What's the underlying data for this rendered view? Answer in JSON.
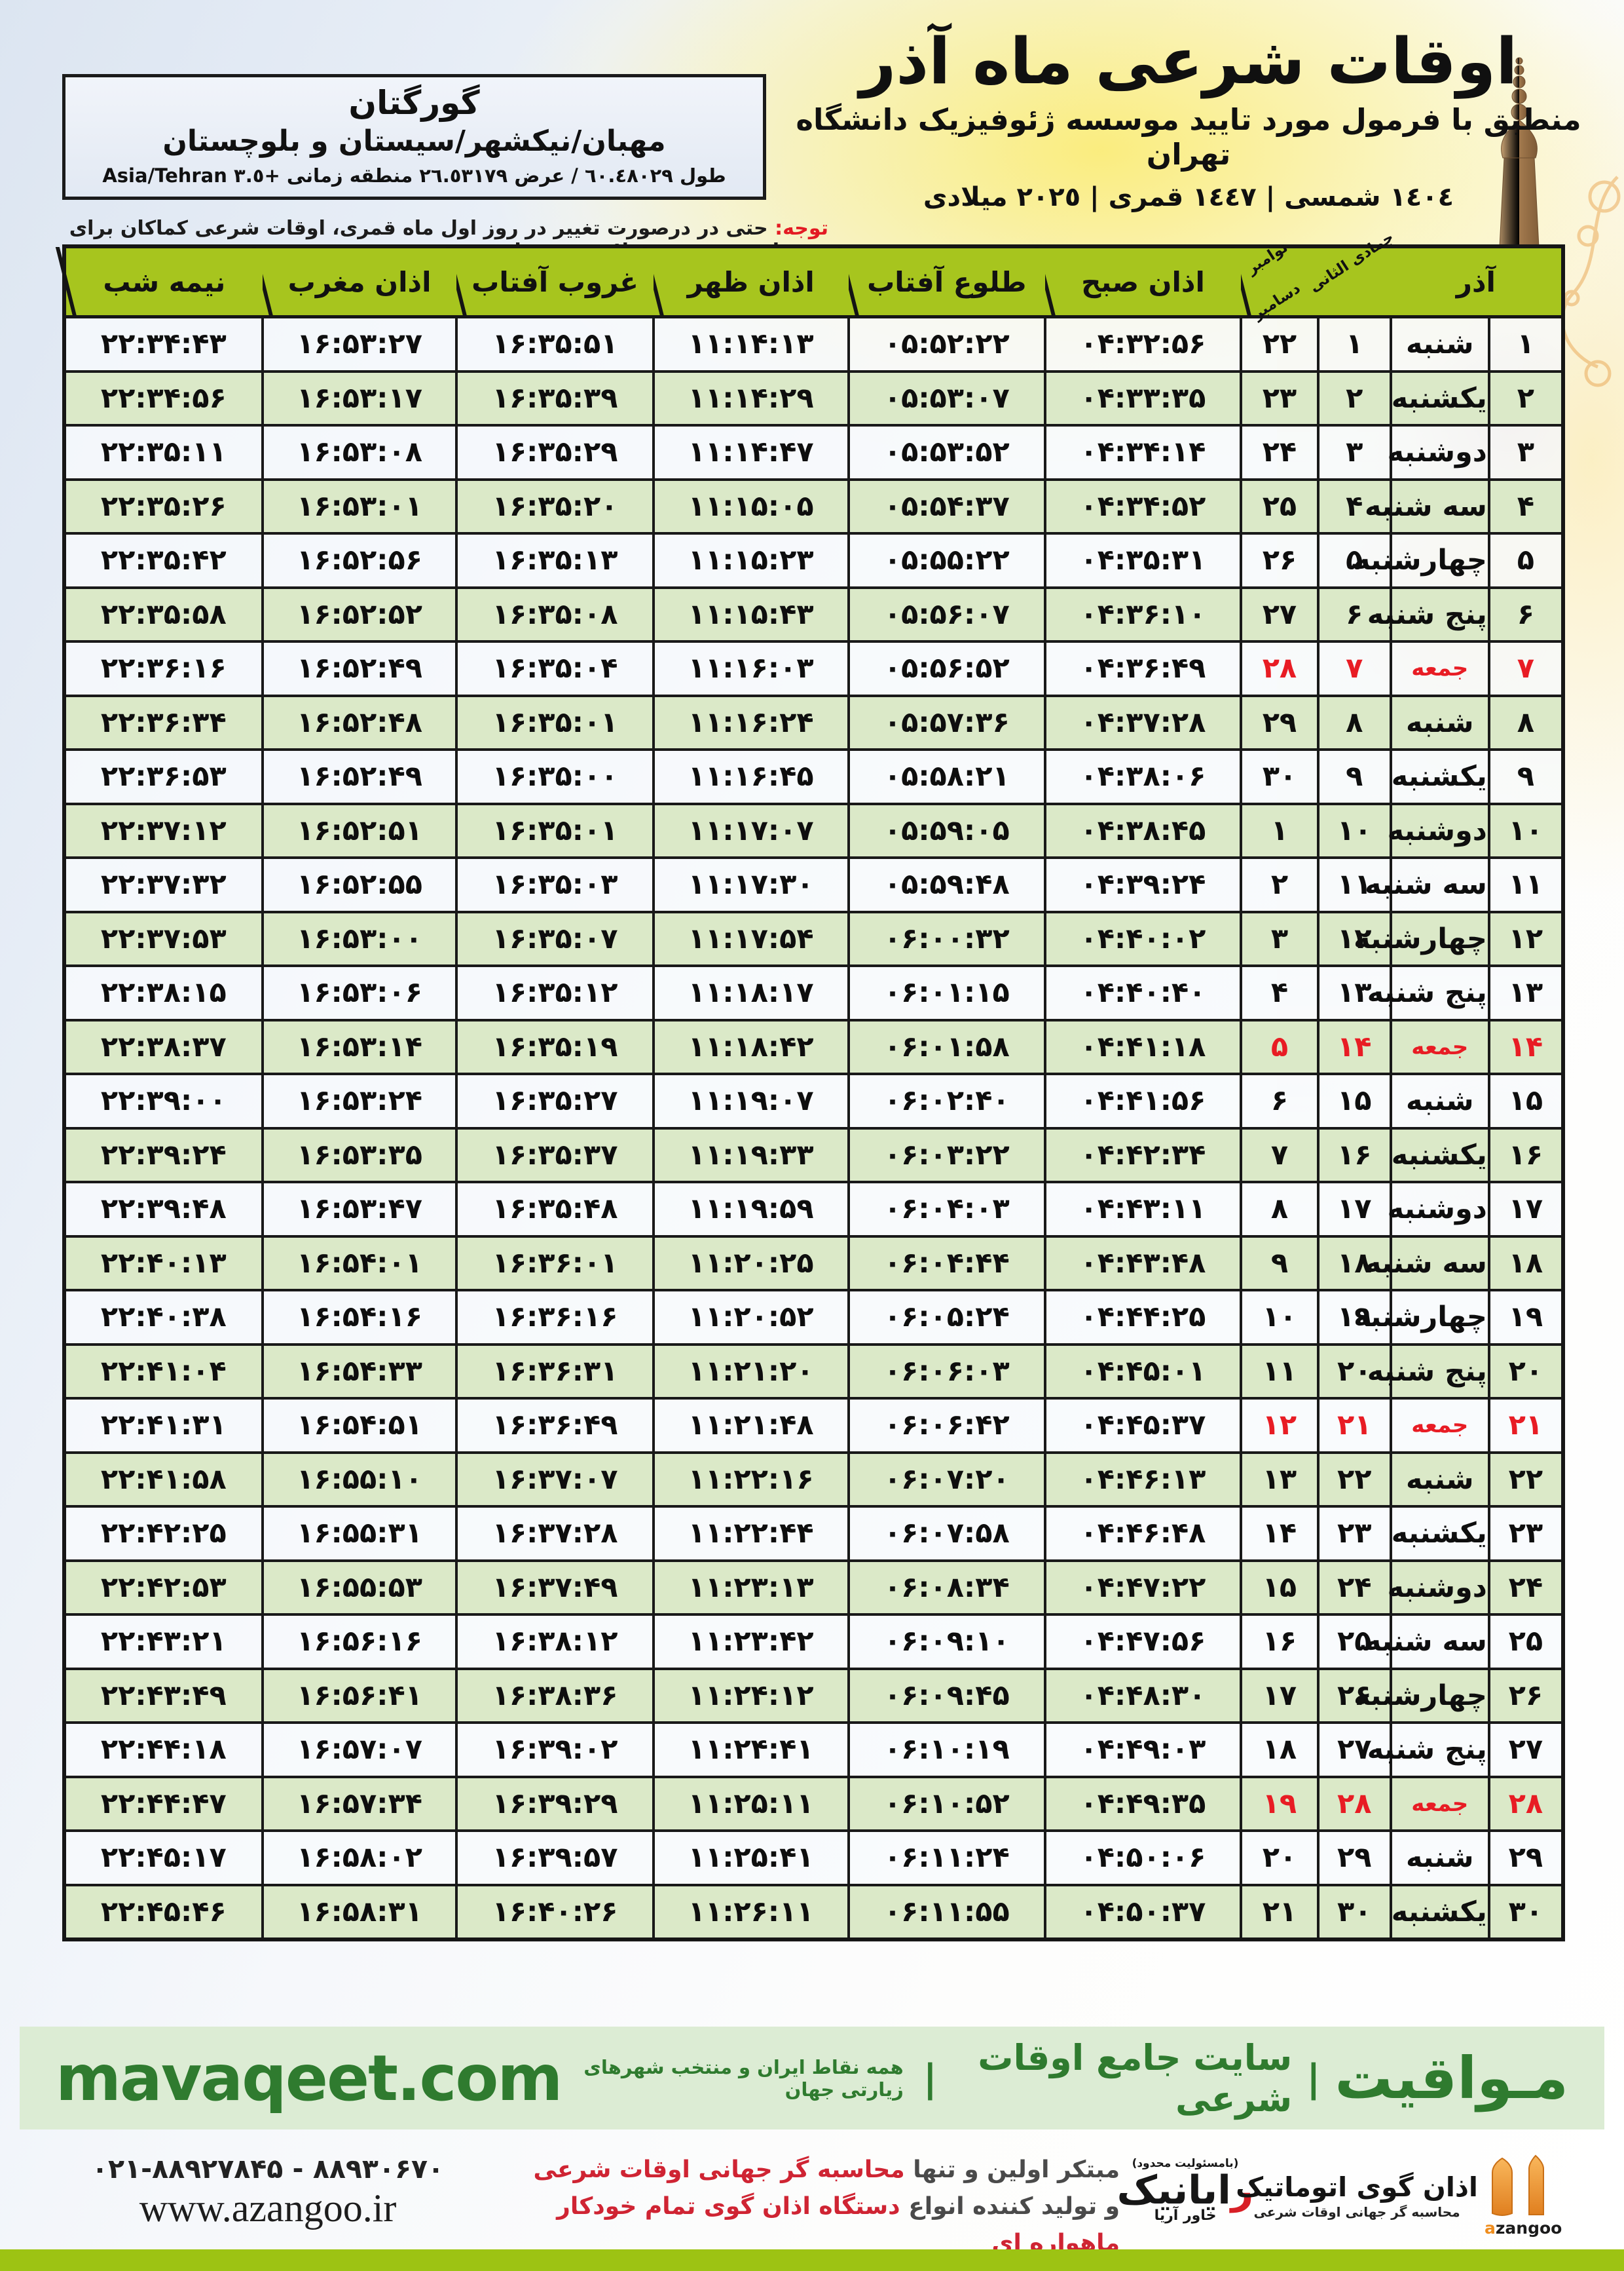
{
  "location": {
    "city": "گورگتان",
    "region": "مهبان/نیکشهر/سیستان و بلوچستان",
    "coords": "طول ٦٠.٤٨٠٢٩ / عرض ٢٦.٥٣١٧٩ منطقه زمانی +٣.٥ Asia/Tehran"
  },
  "title_block": {
    "title": "اوقات شرعی ماه آذر",
    "subtitle": "منطبق با فرمول مورد تایید موسسه ژئوفیزیک دانشگاه تهران",
    "years": "١٤٠٤ شمسی | ١٤٤٧ قمری | ٢٠٢٥ میلادی"
  },
  "notice": {
    "label": "توجه:",
    "text": "حتی در درصورت تغییر در روز اول ماه قمری، اوقات شرعی کماکان برای روزهای شمسی و میلادی معتبر است."
  },
  "table": {
    "headers": {
      "azar": "آذر",
      "hijri_month": "جمادی الثانی",
      "greg_month_1": "نوامبر",
      "greg_month_2": "دسامبر",
      "sobh": "اذان صبح",
      "tolu": "طلوع آفتاب",
      "zohr": "اذان ظهر",
      "ghorub": "غروب آفتاب",
      "maghreb": "اذان مغرب",
      "nime": "نیمه شب"
    },
    "rows": [
      {
        "azar": 1,
        "weekday": "شنبه",
        "hijri": 1,
        "greg": 22,
        "sobh": "04:32:56",
        "tolu": "05:52:22",
        "zohr": "11:14:13",
        "ghorub": "16:35:51",
        "maghreb": "16:53:27",
        "nime": "22:34:43",
        "friday": false
      },
      {
        "azar": 2,
        "weekday": "یکشنبه",
        "hijri": 2,
        "greg": 23,
        "sobh": "04:33:35",
        "tolu": "05:53:07",
        "zohr": "11:14:29",
        "ghorub": "16:35:39",
        "maghreb": "16:53:17",
        "nime": "22:34:56",
        "friday": false
      },
      {
        "azar": 3,
        "weekday": "دوشنبه",
        "hijri": 3,
        "greg": 24,
        "sobh": "04:34:14",
        "tolu": "05:53:52",
        "zohr": "11:14:47",
        "ghorub": "16:35:29",
        "maghreb": "16:53:08",
        "nime": "22:35:11",
        "friday": false
      },
      {
        "azar": 4,
        "weekday": "سه شنبه",
        "hijri": 4,
        "greg": 25,
        "sobh": "04:34:52",
        "tolu": "05:54:37",
        "zohr": "11:15:05",
        "ghorub": "16:35:20",
        "maghreb": "16:53:01",
        "nime": "22:35:26",
        "friday": false
      },
      {
        "azar": 5,
        "weekday": "چهارشنبه",
        "hijri": 5,
        "greg": 26,
        "sobh": "04:35:31",
        "tolu": "05:55:22",
        "zohr": "11:15:23",
        "ghorub": "16:35:13",
        "maghreb": "16:52:56",
        "nime": "22:35:42",
        "friday": false
      },
      {
        "azar": 6,
        "weekday": "پنج شنبه",
        "hijri": 6,
        "greg": 27,
        "sobh": "04:36:10",
        "tolu": "05:56:07",
        "zohr": "11:15:43",
        "ghorub": "16:35:08",
        "maghreb": "16:52:52",
        "nime": "22:35:58",
        "friday": false
      },
      {
        "azar": 7,
        "weekday": "جمعه",
        "hijri": 7,
        "greg": 28,
        "sobh": "04:36:49",
        "tolu": "05:56:52",
        "zohr": "11:16:03",
        "ghorub": "16:35:04",
        "maghreb": "16:52:49",
        "nime": "22:36:16",
        "friday": true
      },
      {
        "azar": 8,
        "weekday": "شنبه",
        "hijri": 8,
        "greg": 29,
        "sobh": "04:37:28",
        "tolu": "05:57:36",
        "zohr": "11:16:24",
        "ghorub": "16:35:01",
        "maghreb": "16:52:48",
        "nime": "22:36:34",
        "friday": false
      },
      {
        "azar": 9,
        "weekday": "یکشنبه",
        "hijri": 9,
        "greg": 30,
        "sobh": "04:38:06",
        "tolu": "05:58:21",
        "zohr": "11:16:45",
        "ghorub": "16:35:00",
        "maghreb": "16:52:49",
        "nime": "22:36:53",
        "friday": false
      },
      {
        "azar": 10,
        "weekday": "دوشنبه",
        "hijri": 10,
        "greg": 1,
        "sobh": "04:38:45",
        "tolu": "05:59:05",
        "zohr": "11:17:07",
        "ghorub": "16:35:01",
        "maghreb": "16:52:51",
        "nime": "22:37:12",
        "friday": false
      },
      {
        "azar": 11,
        "weekday": "سه شنبه",
        "hijri": 11,
        "greg": 2,
        "sobh": "04:39:24",
        "tolu": "05:59:48",
        "zohr": "11:17:30",
        "ghorub": "16:35:03",
        "maghreb": "16:52:55",
        "nime": "22:37:32",
        "friday": false
      },
      {
        "azar": 12,
        "weekday": "چهارشنبه",
        "hijri": 12,
        "greg": 3,
        "sobh": "04:40:02",
        "tolu": "06:00:32",
        "zohr": "11:17:54",
        "ghorub": "16:35:07",
        "maghreb": "16:53:00",
        "nime": "22:37:53",
        "friday": false
      },
      {
        "azar": 13,
        "weekday": "پنج شنبه",
        "hijri": 13,
        "greg": 4,
        "sobh": "04:40:40",
        "tolu": "06:01:15",
        "zohr": "11:18:17",
        "ghorub": "16:35:12",
        "maghreb": "16:53:06",
        "nime": "22:38:15",
        "friday": false
      },
      {
        "azar": 14,
        "weekday": "جمعه",
        "hijri": 14,
        "greg": 5,
        "sobh": "04:41:18",
        "tolu": "06:01:58",
        "zohr": "11:18:42",
        "ghorub": "16:35:19",
        "maghreb": "16:53:14",
        "nime": "22:38:37",
        "friday": true
      },
      {
        "azar": 15,
        "weekday": "شنبه",
        "hijri": 15,
        "greg": 6,
        "sobh": "04:41:56",
        "tolu": "06:02:40",
        "zohr": "11:19:07",
        "ghorub": "16:35:27",
        "maghreb": "16:53:24",
        "nime": "22:39:00",
        "friday": false
      },
      {
        "azar": 16,
        "weekday": "یکشنبه",
        "hijri": 16,
        "greg": 7,
        "sobh": "04:42:34",
        "tolu": "06:03:22",
        "zohr": "11:19:33",
        "ghorub": "16:35:37",
        "maghreb": "16:53:35",
        "nime": "22:39:24",
        "friday": false
      },
      {
        "azar": 17,
        "weekday": "دوشنبه",
        "hijri": 17,
        "greg": 8,
        "sobh": "04:43:11",
        "tolu": "06:04:03",
        "zohr": "11:19:59",
        "ghorub": "16:35:48",
        "maghreb": "16:53:47",
        "nime": "22:39:48",
        "friday": false
      },
      {
        "azar": 18,
        "weekday": "سه شنبه",
        "hijri": 18,
        "greg": 9,
        "sobh": "04:43:48",
        "tolu": "06:04:44",
        "zohr": "11:20:25",
        "ghorub": "16:36:01",
        "maghreb": "16:54:01",
        "nime": "22:40:13",
        "friday": false
      },
      {
        "azar": 19,
        "weekday": "چهارشنبه",
        "hijri": 19,
        "greg": 10,
        "sobh": "04:44:25",
        "tolu": "06:05:24",
        "zohr": "11:20:52",
        "ghorub": "16:36:16",
        "maghreb": "16:54:16",
        "nime": "22:40:38",
        "friday": false
      },
      {
        "azar": 20,
        "weekday": "پنج شنبه",
        "hijri": 20,
        "greg": 11,
        "sobh": "04:45:01",
        "tolu": "06:06:03",
        "zohr": "11:21:20",
        "ghorub": "16:36:31",
        "maghreb": "16:54:33",
        "nime": "22:41:04",
        "friday": false
      },
      {
        "azar": 21,
        "weekday": "جمعه",
        "hijri": 21,
        "greg": 12,
        "sobh": "04:45:37",
        "tolu": "06:06:42",
        "zohr": "11:21:48",
        "ghorub": "16:36:49",
        "maghreb": "16:54:51",
        "nime": "22:41:31",
        "friday": true
      },
      {
        "azar": 22,
        "weekday": "شنبه",
        "hijri": 22,
        "greg": 13,
        "sobh": "04:46:13",
        "tolu": "06:07:20",
        "zohr": "11:22:16",
        "ghorub": "16:37:07",
        "maghreb": "16:55:10",
        "nime": "22:41:58",
        "friday": false
      },
      {
        "azar": 23,
        "weekday": "یکشنبه",
        "hijri": 23,
        "greg": 14,
        "sobh": "04:46:48",
        "tolu": "06:07:58",
        "zohr": "11:22:44",
        "ghorub": "16:37:28",
        "maghreb": "16:55:31",
        "nime": "22:42:25",
        "friday": false
      },
      {
        "azar": 24,
        "weekday": "دوشنبه",
        "hijri": 24,
        "greg": 15,
        "sobh": "04:47:22",
        "tolu": "06:08:34",
        "zohr": "11:23:13",
        "ghorub": "16:37:49",
        "maghreb": "16:55:53",
        "nime": "22:42:53",
        "friday": false
      },
      {
        "azar": 25,
        "weekday": "سه شنبه",
        "hijri": 25,
        "greg": 16,
        "sobh": "04:47:56",
        "tolu": "06:09:10",
        "zohr": "11:23:42",
        "ghorub": "16:38:12",
        "maghreb": "16:56:16",
        "nime": "22:43:21",
        "friday": false
      },
      {
        "azar": 26,
        "weekday": "چهارشنبه",
        "hijri": 26,
        "greg": 17,
        "sobh": "04:48:30",
        "tolu": "06:09:45",
        "zohr": "11:24:12",
        "ghorub": "16:38:36",
        "maghreb": "16:56:41",
        "nime": "22:43:49",
        "friday": false
      },
      {
        "azar": 27,
        "weekday": "پنج شنبه",
        "hijri": 27,
        "greg": 18,
        "sobh": "04:49:03",
        "tolu": "06:10:19",
        "zohr": "11:24:41",
        "ghorub": "16:39:02",
        "maghreb": "16:57:07",
        "nime": "22:44:18",
        "friday": false
      },
      {
        "azar": 28,
        "weekday": "جمعه",
        "hijri": 28,
        "greg": 19,
        "sobh": "04:49:35",
        "tolu": "06:10:52",
        "zohr": "11:25:11",
        "ghorub": "16:39:29",
        "maghreb": "16:57:34",
        "nime": "22:44:47",
        "friday": true
      },
      {
        "azar": 29,
        "weekday": "شنبه",
        "hijri": 29,
        "greg": 20,
        "sobh": "04:50:06",
        "tolu": "06:11:24",
        "zohr": "11:25:41",
        "ghorub": "16:39:57",
        "maghreb": "16:58:02",
        "nime": "22:45:17",
        "friday": false
      },
      {
        "azar": 30,
        "weekday": "یکشنبه",
        "hijri": 30,
        "greg": 21,
        "sobh": "04:50:37",
        "tolu": "06:11:55",
        "zohr": "11:26:11",
        "ghorub": "16:40:26",
        "maghreb": "16:58:31",
        "nime": "22:45:46",
        "friday": false
      }
    ]
  },
  "mavaqeet_band": {
    "brand": "مـواقیت",
    "separator": "|",
    "site_desc": "سایت جامع اوقات شرعی",
    "coverage": "همه نقاط ایران و منتخب شهرهای زیارتی جهان",
    "url": "mavaqeet.com"
  },
  "bottom": {
    "phone": "۰۲۱-۸۸۹۲۷۸۴۵ - ۸۸۹۳۰۶۷۰",
    "website": "www.azangoo.ir",
    "tagline_1a": "مبتکر اولین و تنها",
    "tagline_1b": "محاسبه گر جهانی اوقات شرعی",
    "tagline_2a": "و تولید کننده انواع",
    "tagline_2b": "دستگاه اذان گوی تمام خودکار ماهواره ای",
    "rayanik": {
      "note": "(بامسئولیت محدود)",
      "name_first": "ر",
      "name_rest": "ایانیک",
      "sub": "خاور آریا"
    },
    "azangoo": {
      "name": "اذان گوی اتوماتیک",
      "desc": "محاسبه گر جهانی اوقات شرعی",
      "latin_a": "a",
      "latin_rest": "zangoo"
    }
  },
  "colors": {
    "header_green": "#a7c51e",
    "row_green": "#dbe9c8",
    "friday_red": "#e81c24",
    "notice_red": "#e31b23",
    "band_green_bg": "#dcecd4",
    "band_green_text": "#2f7b2f",
    "bottom_strip": "#9dc313",
    "tagline_red": "#cf2433"
  }
}
